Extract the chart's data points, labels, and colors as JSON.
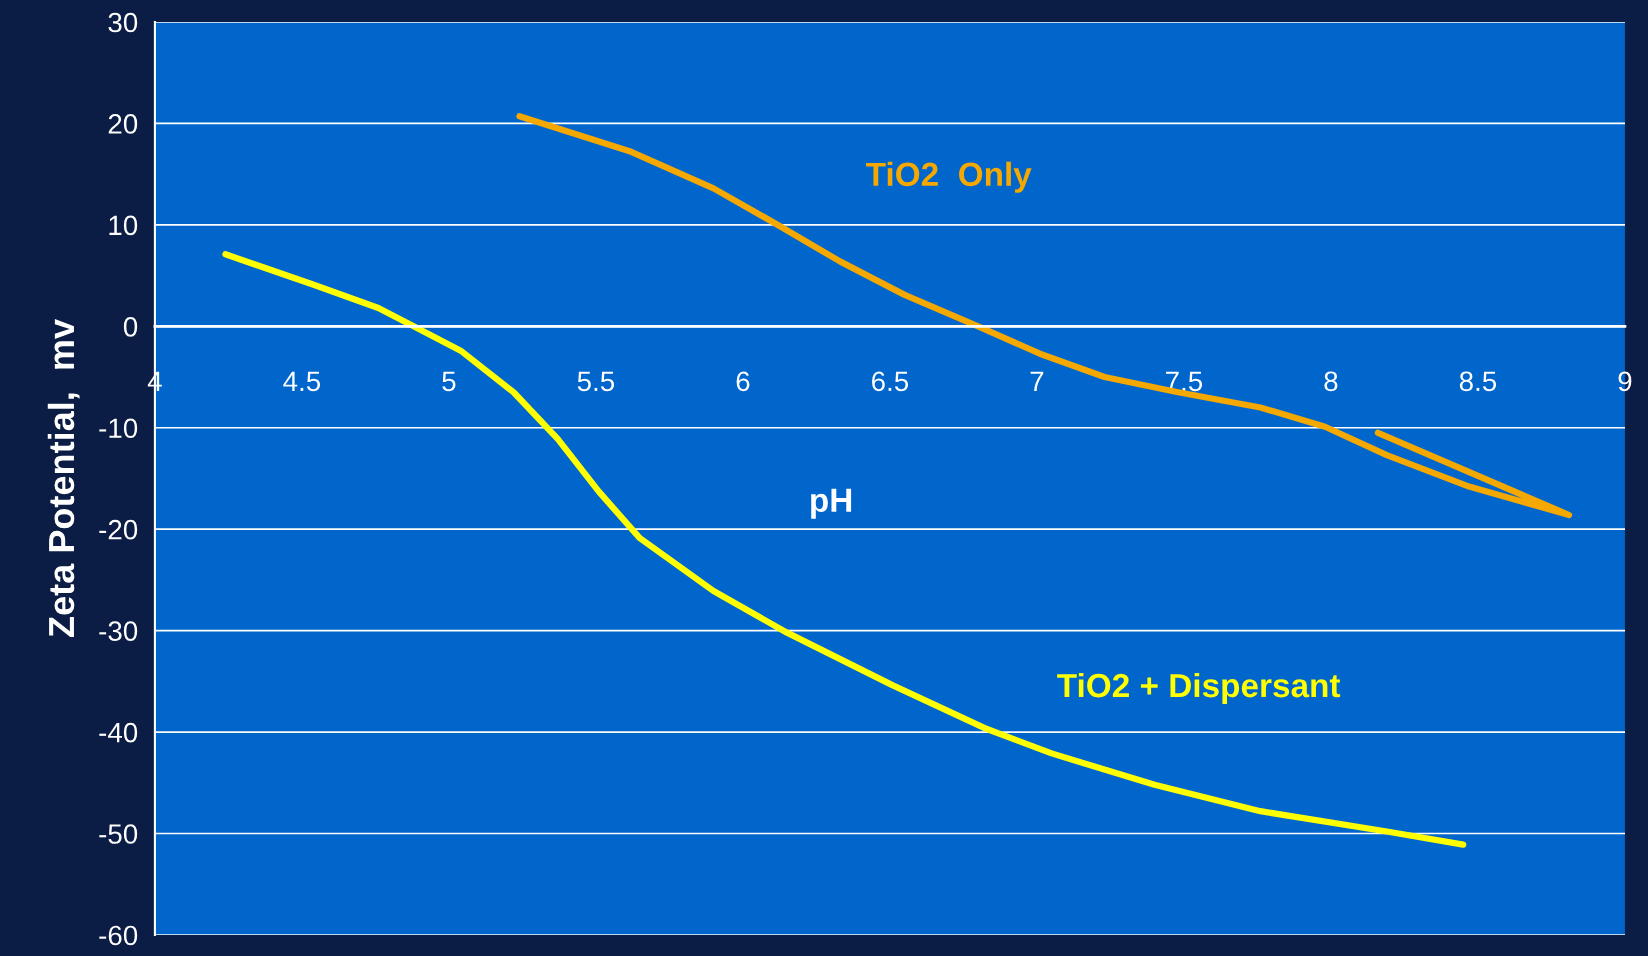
{
  "chart_data": {
    "type": "line",
    "xlabel": "pH",
    "ylabel": "Zeta Potential,  mv",
    "xlim": [
      4,
      9
    ],
    "xticks": [
      4,
      4.5,
      5,
      5.5,
      6,
      6.5,
      7,
      7.5,
      8,
      8.5,
      9
    ],
    "ylim": [
      -60,
      30
    ],
    "yticks": [
      -60,
      -50,
      -40,
      -30,
      -20,
      -10,
      0,
      10,
      20,
      30
    ],
    "grid": "y",
    "legend": false,
    "marker": "none",
    "line_style": "solid",
    "series": [
      {
        "name": "TiO2  Only",
        "color": "#f5a800",
        "x": [
          5.24,
          5.62,
          5.9,
          6.1,
          6.33,
          6.55,
          6.8,
          7.01,
          7.23,
          7.48,
          7.76,
          7.98,
          8.19,
          8.47,
          8.81,
          8.16
        ],
        "values": [
          20.7,
          17.2,
          13.6,
          10.3,
          6.4,
          3.1,
          0,
          -2.7,
          -5.0,
          -6.5,
          -8.0,
          -9.9,
          -12.7,
          -15.8,
          -18.6,
          -10.5
        ]
      },
      {
        "name": "TiO2 + Dispersant",
        "color": "#ffff00",
        "x": [
          4.24,
          4.54,
          4.76,
          4.88,
          5.04,
          5.22,
          5.37,
          5.51,
          5.65,
          5.9,
          6.15,
          6.51,
          6.83,
          7.05,
          7.4,
          7.76,
          8.19,
          8.45
        ],
        "values": [
          7.1,
          4.1,
          1.8,
          0,
          -2.4,
          -6.5,
          -11.1,
          -16.3,
          -20.9,
          -26.1,
          -30.2,
          -35.4,
          -39.7,
          -42.1,
          -45.2,
          -47.8,
          -49.8,
          -51.1
        ]
      }
    ]
  }
}
